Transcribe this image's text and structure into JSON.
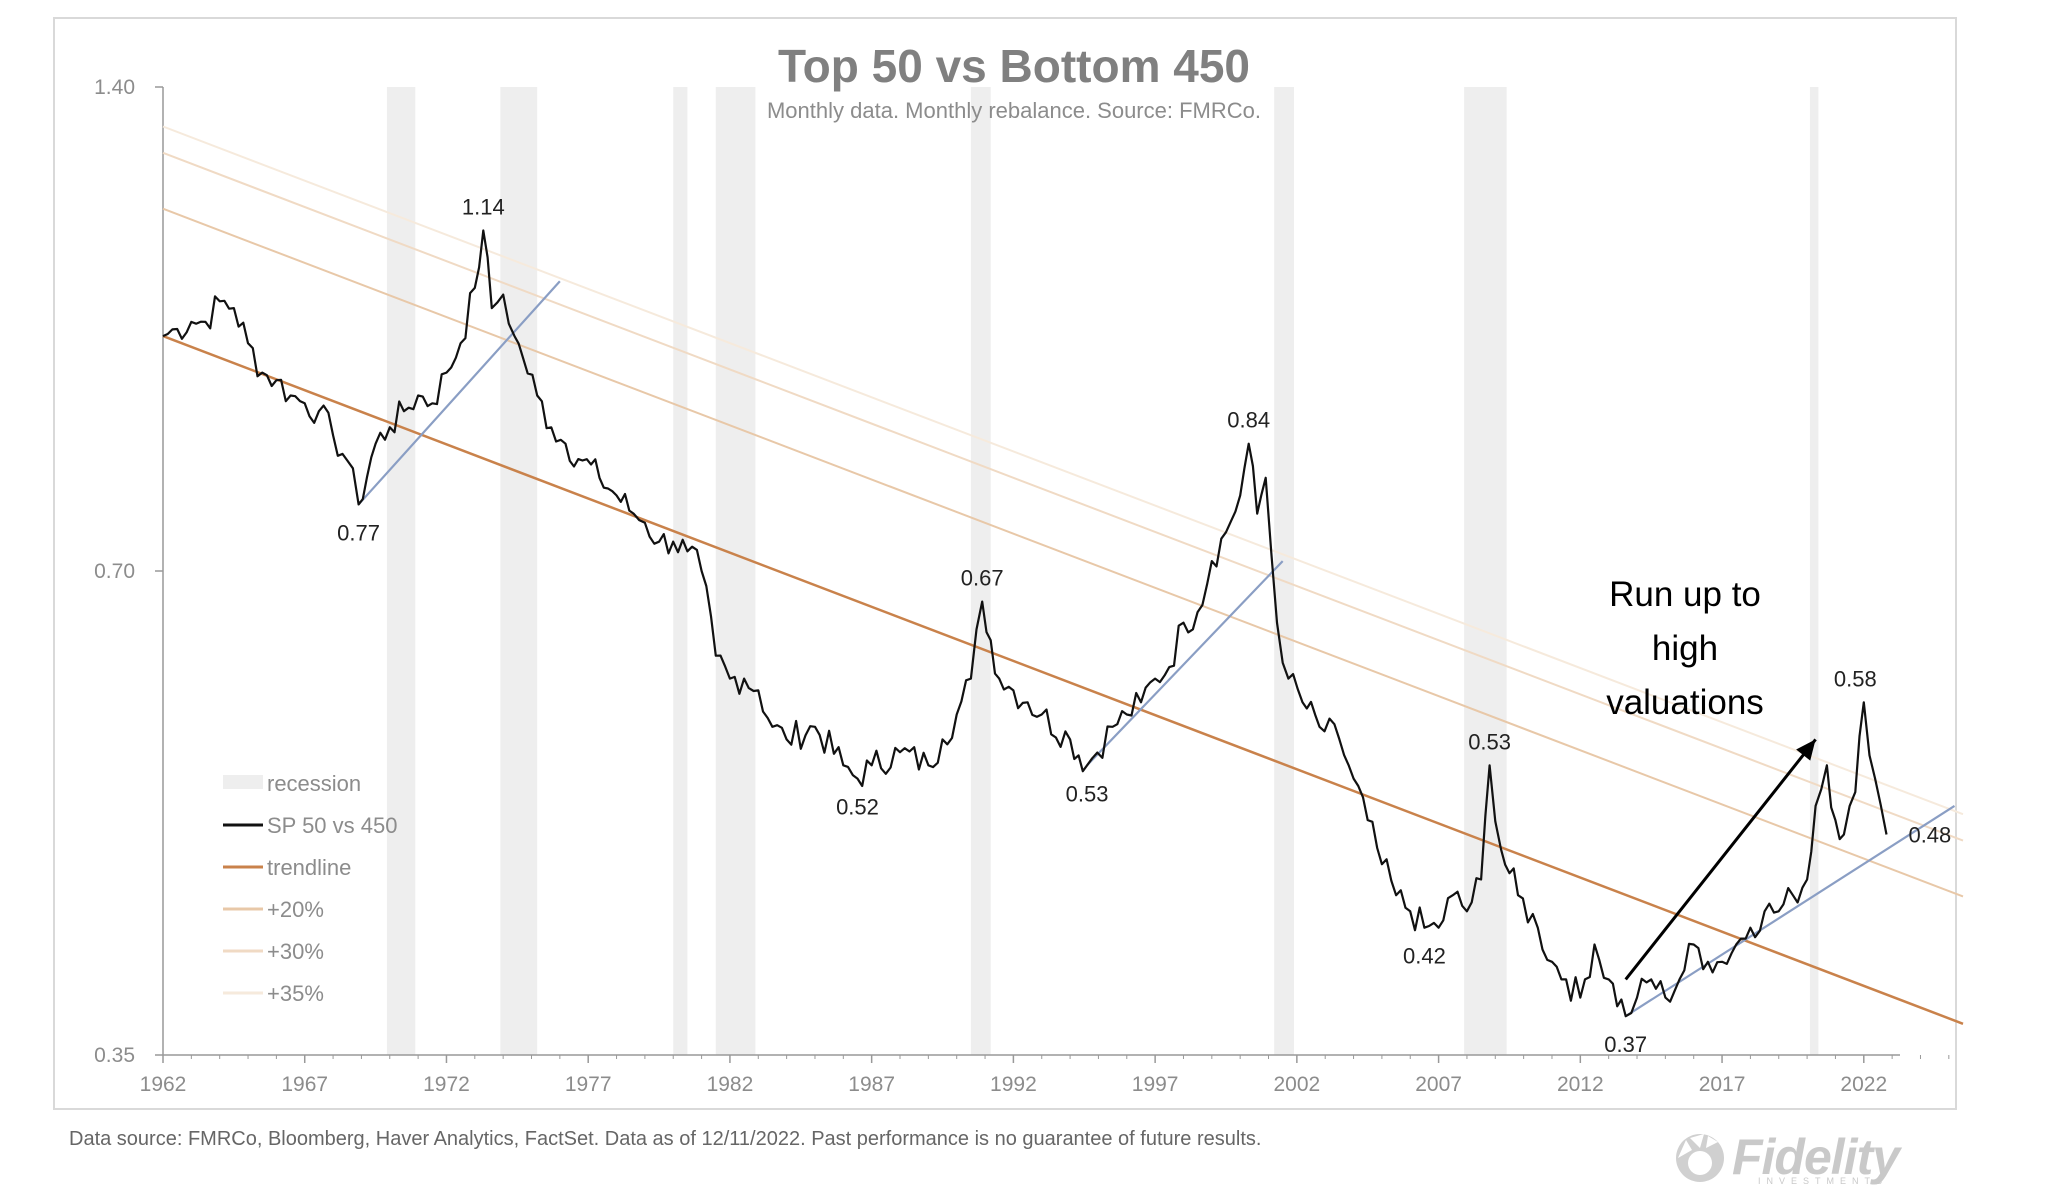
{
  "chart_data": {
    "type": "line",
    "title": "Top 50 vs Bottom 450",
    "subtitle": "Monthly data.  Monthly rebalance. Source: FMRCo.",
    "xlabel": "",
    "ylabel": "",
    "yscale": "log",
    "ylim": [
      0.35,
      1.4
    ],
    "xlim": [
      1962,
      2025.5
    ],
    "x_ticks": [
      "1962",
      "1967",
      "1972",
      "1977",
      "1982",
      "1987",
      "1992",
      "1997",
      "2002",
      "2007",
      "2012",
      "2017",
      "2022"
    ],
    "y_ticks": [
      "1.40",
      "0.70",
      "0.35"
    ],
    "legend": {
      "placement": "bottom-left",
      "entries": [
        "recession",
        "SP 50 vs 450",
        "trendline",
        "+20%",
        "+30%",
        "+35%"
      ]
    },
    "recessions": [
      [
        1969.9,
        1970.9
      ],
      [
        1973.9,
        1975.2
      ],
      [
        1980.0,
        1980.5
      ],
      [
        1981.5,
        1982.9
      ],
      [
        1990.5,
        1991.2
      ],
      [
        2001.2,
        2001.9
      ],
      [
        2007.9,
        2009.4
      ],
      [
        2020.1,
        2020.4
      ]
    ],
    "trendline": {
      "start": [
        1962,
        0.98
      ],
      "end": [
        2025.5,
        0.366
      ]
    },
    "bands": [
      {
        "name": "+20%",
        "multiplier": 1.2
      },
      {
        "name": "+30%",
        "multiplier": 1.3
      },
      {
        "name": "+35%",
        "multiplier": 1.35
      }
    ],
    "series": [
      {
        "name": "SP 50 vs 450",
        "x": [
          1962.0,
          1962.5,
          1963.0,
          1963.5,
          1964.0,
          1964.5,
          1965.0,
          1965.5,
          1966.0,
          1966.5,
          1967.0,
          1967.5,
          1968.0,
          1968.5,
          1968.9,
          1969.5,
          1970.0,
          1970.5,
          1971.0,
          1971.5,
          1972.0,
          1972.5,
          1973.0,
          1973.3,
          1973.6,
          1974.0,
          1974.4,
          1974.7,
          1975.2,
          1975.7,
          1976.2,
          1976.8,
          1977.4,
          1978.0,
          1978.6,
          1979.0,
          1979.5,
          1980.0,
          1980.5,
          1981.0,
          1981.5,
          1982.0,
          1982.5,
          1983.0,
          1983.5,
          1984.0,
          1985.0,
          1986.0,
          1986.5,
          1987.0,
          1988.0,
          1989.0,
          1989.5,
          1990.0,
          1990.5,
          1990.9,
          1991.5,
          1992.0,
          1992.5,
          1993.0,
          1994.0,
          1994.6,
          1995.5,
          1996.0,
          1996.5,
          1997.0,
          1997.5,
          1998.0,
          1998.5,
          1999.0,
          1999.5,
          2000.0,
          2000.3,
          2000.6,
          2000.9,
          2001.3,
          2001.7,
          2002.2,
          2002.8,
          2003.5,
          2004.0,
          2004.5,
          2005.0,
          2005.5,
          2006.0,
          2006.5,
          2007.0,
          2007.5,
          2008.0,
          2008.5,
          2008.8,
          2009.2,
          2009.8,
          2010.5,
          2011.0,
          2011.5,
          2012.0,
          2012.5,
          2013.0,
          2013.6,
          2014.0,
          2014.5,
          2015.0,
          2015.5,
          2016.0,
          2016.5,
          2017.0,
          2017.5,
          2018.0,
          2018.5,
          2019.0,
          2019.5,
          2020.0,
          2020.3,
          2020.7,
          2021.0,
          2021.3,
          2021.7,
          2022.0,
          2022.4,
          2022.8
        ],
        "values": [
          0.98,
          0.99,
          1.0,
          1.0,
          1.03,
          1.02,
          0.97,
          0.93,
          0.92,
          0.9,
          0.89,
          0.88,
          0.85,
          0.82,
          0.77,
          0.84,
          0.86,
          0.88,
          0.9,
          0.89,
          0.93,
          0.97,
          1.05,
          1.14,
          1.02,
          1.04,
          0.98,
          0.95,
          0.9,
          0.86,
          0.84,
          0.82,
          0.8,
          0.78,
          0.76,
          0.75,
          0.73,
          0.73,
          0.72,
          0.7,
          0.62,
          0.6,
          0.6,
          0.59,
          0.56,
          0.55,
          0.56,
          0.53,
          0.52,
          0.53,
          0.54,
          0.53,
          0.55,
          0.57,
          0.6,
          0.67,
          0.6,
          0.59,
          0.58,
          0.57,
          0.55,
          0.53,
          0.56,
          0.57,
          0.58,
          0.6,
          0.61,
          0.65,
          0.66,
          0.71,
          0.74,
          0.78,
          0.84,
          0.76,
          0.8,
          0.65,
          0.6,
          0.58,
          0.56,
          0.55,
          0.52,
          0.49,
          0.46,
          0.44,
          0.43,
          0.42,
          0.42,
          0.44,
          0.43,
          0.45,
          0.53,
          0.47,
          0.44,
          0.42,
          0.4,
          0.39,
          0.38,
          0.41,
          0.39,
          0.37,
          0.38,
          0.39,
          0.38,
          0.39,
          0.41,
          0.4,
          0.4,
          0.41,
          0.42,
          0.43,
          0.43,
          0.44,
          0.45,
          0.5,
          0.53,
          0.49,
          0.48,
          0.51,
          0.58,
          0.52,
          0.48
        ]
      }
    ],
    "support_lines": [
      {
        "from": [
          1968.9,
          0.77
        ],
        "to": [
          1976.0,
          1.06
        ]
      },
      {
        "from": [
          1994.6,
          0.53
        ],
        "to": [
          2001.5,
          0.71
        ]
      },
      {
        "from": [
          2013.6,
          0.37
        ],
        "to": [
          2025.2,
          0.5
        ]
      }
    ],
    "point_labels": [
      {
        "text": "1.14",
        "x": 1973.3,
        "y": 1.14,
        "pos": "above"
      },
      {
        "text": "0.77",
        "x": 1968.9,
        "y": 0.77,
        "pos": "below"
      },
      {
        "text": "0.67",
        "x": 1990.9,
        "y": 0.67,
        "pos": "above"
      },
      {
        "text": "0.52",
        "x": 1986.5,
        "y": 0.52,
        "pos": "below"
      },
      {
        "text": "0.53",
        "x": 1994.6,
        "y": 0.53,
        "pos": "below"
      },
      {
        "text": "0.84",
        "x": 2000.3,
        "y": 0.84,
        "pos": "above"
      },
      {
        "text": "0.53",
        "x": 2008.8,
        "y": 0.53,
        "pos": "above"
      },
      {
        "text": "0.42",
        "x": 2006.5,
        "y": 0.42,
        "pos": "below"
      },
      {
        "text": "0.37",
        "x": 2013.6,
        "y": 0.37,
        "pos": "below"
      },
      {
        "text": "0.58",
        "x": 2021.7,
        "y": 0.58,
        "pos": "above"
      },
      {
        "text": "0.48",
        "x": 2022.8,
        "y": 0.48,
        "pos": "right"
      }
    ],
    "annotation": {
      "lines": [
        "Run up to",
        "high",
        "valuations"
      ],
      "arrow_from": [
        2013.6,
        0.39
      ],
      "arrow_to": [
        2020.3,
        0.55
      ]
    },
    "colors": {
      "series": "#111111",
      "trendline": "#c9824b",
      "band20": "#e8c8a8",
      "band30": "#f0dac4",
      "band35": "#f6eadc",
      "support": "#8a9ec4",
      "recession": "#eeeeee",
      "axis": "#999999"
    }
  },
  "footer": {
    "note": "Data source: FMRCo, Bloomberg, Haver Analytics, FactSet. Data as of 12/11/2022. Past performance is no guarantee of future results.",
    "logo_text": "Fidelity",
    "logo_subtext": "INVESTMENTS"
  }
}
